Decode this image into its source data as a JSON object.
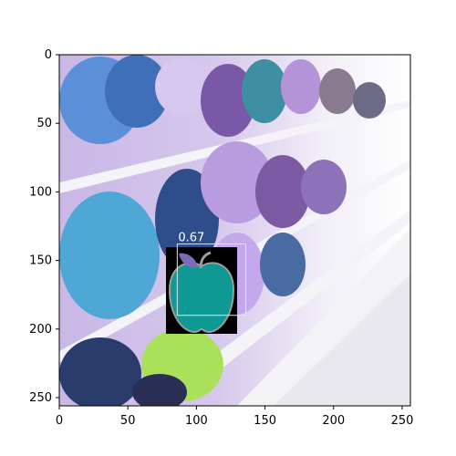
{
  "figure": {
    "x_ticks": [
      "0",
      "50",
      "100",
      "150",
      "200",
      "250"
    ],
    "y_ticks": [
      "0",
      "50",
      "100",
      "150",
      "200",
      "250"
    ],
    "xlim": [
      0,
      256
    ],
    "ylim": [
      256,
      0
    ]
  },
  "image_content": {
    "description_icon": "apple-icon",
    "colors": {
      "apple_fill": "#0f9994",
      "leaf": "#7f6bb5",
      "box_stroke": "#e6e6e6",
      "icon_bg": "#000000"
    }
  },
  "detection": {
    "score_label": "0.67",
    "box": {
      "x0": 86,
      "y0": 138,
      "x1": 136,
      "y1": 190
    },
    "icon_box": {
      "x0": 78,
      "y0": 140,
      "x1": 130,
      "y1": 204
    }
  }
}
